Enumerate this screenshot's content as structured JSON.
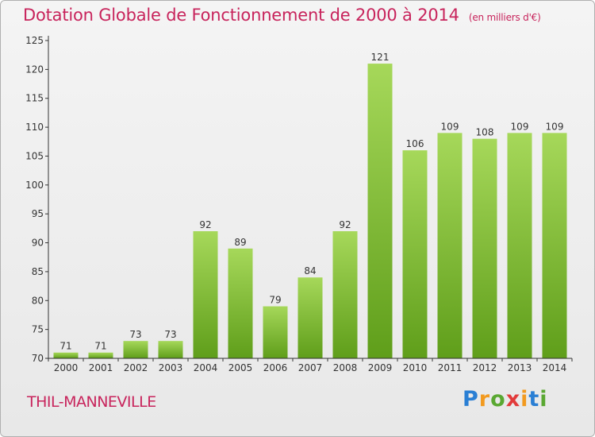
{
  "title": "Dotation Globale de Fonctionnement de 2000 à 2014",
  "unit_note": "(en milliers d'€)",
  "commune": "THIL-MANNEVILLE",
  "brand": {
    "text": "Proxiti",
    "letter_colors": [
      "#2a7fd4",
      "#f29a1f",
      "#5aa832",
      "#e23b3b",
      "#f29a1f",
      "#2a7fd4",
      "#5aa832"
    ]
  },
  "colors": {
    "accent": "#c8245c",
    "bar_top": "#a6d85a",
    "bar_bottom": "#5f9e1a"
  },
  "chart_data": {
    "type": "bar",
    "categories": [
      "2000",
      "2001",
      "2002",
      "2003",
      "2004",
      "2005",
      "2006",
      "2007",
      "2008",
      "2009",
      "2010",
      "2011",
      "2012",
      "2013",
      "2014"
    ],
    "values": [
      71,
      71,
      73,
      73,
      92,
      89,
      79,
      84,
      92,
      121,
      106,
      109,
      108,
      109,
      109
    ],
    "ylim": [
      70,
      125
    ],
    "yticks": [
      70,
      75,
      80,
      85,
      90,
      95,
      100,
      105,
      110,
      115,
      120,
      125
    ],
    "grid": false,
    "legend": "none"
  }
}
